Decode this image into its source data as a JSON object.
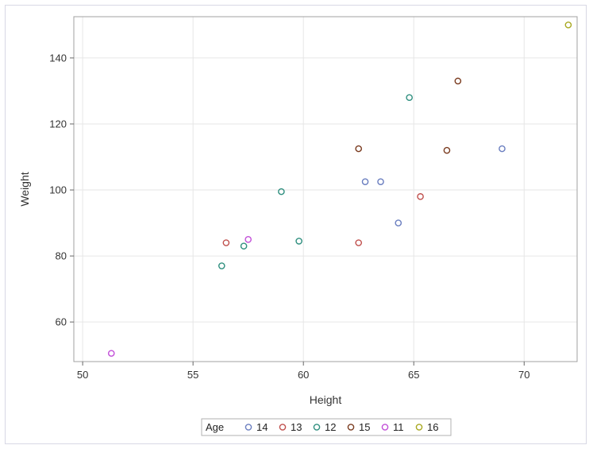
{
  "chart_data": {
    "type": "scatter",
    "title": "",
    "xlabel": "Height",
    "ylabel": "Weight",
    "xlim": [
      49.6,
      72.4
    ],
    "ylim": [
      48.0,
      152.5
    ],
    "x_ticks": [
      50,
      55,
      60,
      65,
      70
    ],
    "y_ticks": [
      60,
      80,
      100,
      120,
      140
    ],
    "x_tick_labels": [
      "50",
      "55",
      "60",
      "65",
      "70"
    ],
    "y_tick_labels": [
      "60",
      "80",
      "100",
      "120",
      "140"
    ],
    "grid": true,
    "legend": {
      "title": "Age",
      "placement": "bottom"
    },
    "series": [
      {
        "name": "14",
        "color": "#6b7fc0",
        "points": [
          [
            62.8,
            102.5
          ],
          [
            63.5,
            102.5
          ],
          [
            64.3,
            90.0
          ],
          [
            69.0,
            112.5
          ]
        ]
      },
      {
        "name": "13",
        "color": "#c0504d",
        "points": [
          [
            56.5,
            84.0
          ],
          [
            62.5,
            84.0
          ],
          [
            65.3,
            98.0
          ]
        ]
      },
      {
        "name": "12",
        "color": "#2f8f7f",
        "points": [
          [
            56.3,
            77.0
          ],
          [
            57.3,
            83.0
          ],
          [
            59.0,
            99.5
          ],
          [
            59.8,
            84.5
          ],
          [
            64.8,
            128.0
          ]
        ]
      },
      {
        "name": "15",
        "color": "#7a3b1f",
        "points": [
          [
            62.5,
            112.5
          ],
          [
            66.5,
            112.0
          ],
          [
            67.0,
            133.0
          ]
        ]
      },
      {
        "name": "11",
        "color": "#c24fd8",
        "points": [
          [
            51.3,
            50.5
          ],
          [
            57.5,
            85.0
          ]
        ]
      },
      {
        "name": "16",
        "color": "#a8a820",
        "points": [
          [
            72.0,
            150.0
          ]
        ]
      }
    ]
  }
}
